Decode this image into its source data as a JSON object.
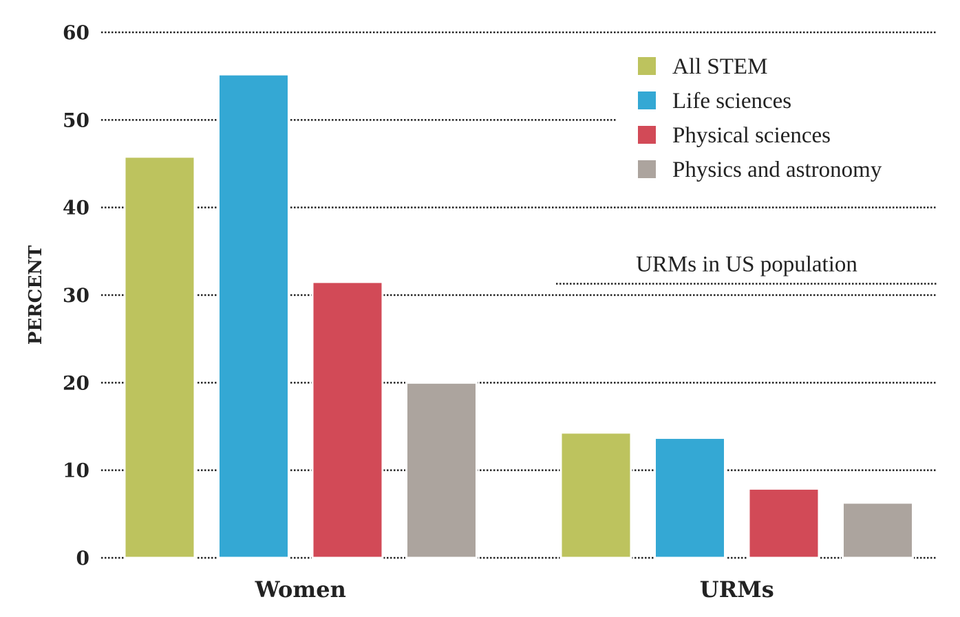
{
  "chart_data": {
    "type": "bar",
    "title": "",
    "xlabel": "",
    "ylabel": "PERCENT",
    "ylim": [
      0,
      60
    ],
    "yticks": [
      0,
      10,
      20,
      30,
      40,
      50,
      60
    ],
    "grid": true,
    "legend_position": "top-right",
    "categories": [
      "Women",
      "URMs"
    ],
    "series": [
      {
        "name": "All STEM",
        "color": "#bdc35e",
        "values": [
          45.8,
          14.3
        ]
      },
      {
        "name": "Life sciences",
        "color": "#34a8d4",
        "values": [
          55.2,
          13.7
        ]
      },
      {
        "name": "Physical sciences",
        "color": "#d24a57",
        "values": [
          31.5,
          7.9
        ]
      },
      {
        "name": "Physics and astronomy",
        "color": "#aca49e",
        "values": [
          20.0,
          6.3
        ]
      }
    ],
    "reference_line": {
      "label": "URMs in US population",
      "value": 31.3,
      "applies_to": "URMs"
    }
  }
}
